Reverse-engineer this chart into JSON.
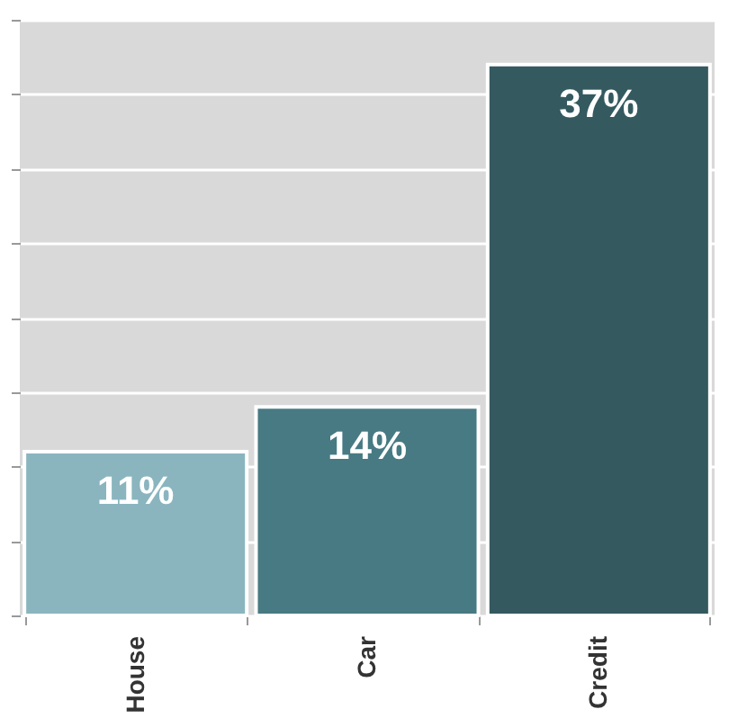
{
  "chart_data": {
    "type": "bar",
    "categories": [
      "House",
      "Car",
      "Credit"
    ],
    "values": [
      11,
      14,
      37
    ],
    "colors": [
      "#8ab5bf",
      "#477a83",
      "#345a60"
    ],
    "value_labels": [
      "11%",
      "14%",
      "37%"
    ],
    "ylim": [
      0,
      40
    ],
    "yticks": [
      {
        "value": 0,
        "label": null
      },
      {
        "value": 5,
        "label": null
      },
      {
        "value": 10,
        "label": null
      },
      {
        "value": 15,
        "label": null
      },
      {
        "value": 20,
        "label": null
      },
      {
        "value": 25,
        "label": null
      },
      {
        "value": 30,
        "label": null
      },
      {
        "value": 35,
        "label": null
      },
      {
        "value": 40,
        "label": null
      }
    ],
    "grid": "y",
    "relative": false
  }
}
